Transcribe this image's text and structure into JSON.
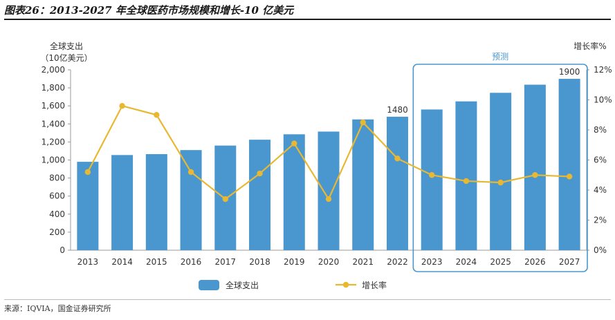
{
  "figure": {
    "title": "图表26：2013-2027 年全球医药市场规模和增长-10 亿美元",
    "source": "来源：IQVIA，国金证券研究所"
  },
  "chart_data": {
    "type": "bar",
    "categories": [
      "2013",
      "2014",
      "2015",
      "2016",
      "2017",
      "2018",
      "2019",
      "2020",
      "2021",
      "2022",
      "2023",
      "2024",
      "2025",
      "2026",
      "2027"
    ],
    "series": [
      {
        "name": "全球支出",
        "type": "bar",
        "axis": "left",
        "color": "#4a97cf",
        "values": [
          980,
          1055,
          1065,
          1110,
          1160,
          1225,
          1285,
          1315,
          1450,
          1480,
          1560,
          1650,
          1745,
          1835,
          1900
        ]
      },
      {
        "name": "增长率",
        "type": "line",
        "axis": "right",
        "color": "#e8b833",
        "values": [
          5.2,
          9.6,
          9.0,
          5.2,
          3.4,
          5.1,
          7.1,
          3.4,
          8.5,
          6.1,
          5.0,
          4.6,
          4.5,
          5.0,
          4.9
        ]
      }
    ],
    "y_left": {
      "label_line1": "全球支出",
      "label_line2": "（10亿美元）",
      "min": 0,
      "max": 2000,
      "step": 200,
      "ticks": [
        "0",
        "200",
        "400",
        "600",
        "800",
        "1,000",
        "1,200",
        "1,400",
        "1,600",
        "1,800",
        "2,000"
      ]
    },
    "y_right": {
      "label": "增长率%",
      "min": 0,
      "max": 12,
      "step": 2,
      "ticks": [
        "0%",
        "2%",
        "4%",
        "6%",
        "8%",
        "10%",
        "12%"
      ]
    },
    "data_labels": [
      {
        "category": "2022",
        "text": "1480"
      },
      {
        "category": "2027",
        "text": "1900"
      }
    ],
    "forecast": {
      "label": "预测",
      "from": "2023",
      "to": "2027"
    },
    "legend": {
      "position": "bottom",
      "items": [
        "全球支出",
        "增长率"
      ]
    },
    "grid": false
  }
}
